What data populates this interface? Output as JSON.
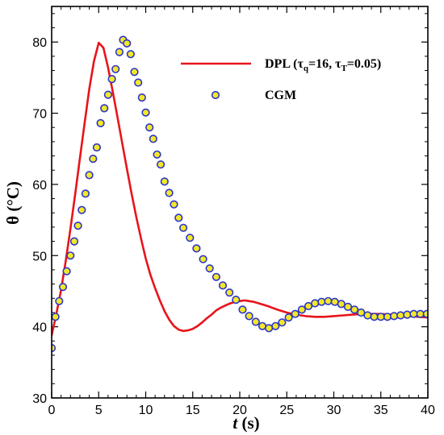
{
  "chart_data": {
    "type": "line",
    "xlabel": {
      "var": "t",
      "unit": " (s)"
    },
    "ylabel": "θ (°C)",
    "xlim": [
      0,
      40
    ],
    "ylim": [
      30,
      85
    ],
    "x_ticks": [
      0,
      5,
      10,
      15,
      20,
      25,
      30,
      35,
      40
    ],
    "y_ticks": [
      30,
      40,
      50,
      60,
      70,
      80
    ],
    "grid": false,
    "legend_position": "top-right",
    "series": [
      {
        "name": "DPL (τq=16, τT=0.05)",
        "legend_parts": {
          "pre": "DPL (τ",
          "sub1": "q",
          "mid": "=16, τ",
          "sub2": "T",
          "post": "=0.05)"
        },
        "style": "line",
        "color": "#e8141b",
        "x": [
          0,
          0.5,
          1,
          1.5,
          2,
          2.5,
          3,
          3.5,
          4,
          4.5,
          5,
          5.5,
          6,
          6.5,
          7,
          7.5,
          8,
          8.5,
          9,
          9.5,
          10,
          10.5,
          11,
          11.5,
          12,
          12.5,
          13,
          13.5,
          14,
          14.5,
          15,
          15.5,
          16,
          16.5,
          17,
          17.5,
          18,
          18.5,
          19,
          19.5,
          20,
          20.5,
          21,
          21.5,
          22,
          22.5,
          23,
          24,
          25,
          26,
          27,
          28,
          29,
          30,
          31,
          32,
          33,
          34,
          35,
          36,
          37,
          38,
          39,
          40
        ],
        "y": [
          38.8,
          41.8,
          45.2,
          49.3,
          53.8,
          58.6,
          63.6,
          68.6,
          73.4,
          77.3,
          79.9,
          79.2,
          76.4,
          73.0,
          69.4,
          65.8,
          62.2,
          58.7,
          55.4,
          52.4,
          49.6,
          47.3,
          45.4,
          43.7,
          42.2,
          41.0,
          40.1,
          39.6,
          39.4,
          39.5,
          39.7,
          40.1,
          40.6,
          41.2,
          41.7,
          42.3,
          42.7,
          43.0,
          43.3,
          43.5,
          43.6,
          43.7,
          43.6,
          43.5,
          43.3,
          43.1,
          42.9,
          42.4,
          42.0,
          41.7,
          41.5,
          41.4,
          41.4,
          41.5,
          41.6,
          41.7,
          41.8,
          41.8,
          41.8,
          41.7,
          41.6,
          41.5,
          41.4,
          41.3
        ]
      },
      {
        "name": "CGM",
        "style": "markers",
        "marker_fill": "#f2e72a",
        "marker_stroke": "#2c36c9",
        "x": [
          0,
          0.4,
          0.8,
          1.2,
          1.6,
          2.0,
          2.4,
          2.8,
          3.2,
          3.6,
          4.0,
          4.4,
          4.8,
          5.2,
          5.6,
          6.0,
          6.4,
          6.8,
          7.2,
          7.6,
          8.0,
          8.4,
          8.8,
          9.2,
          9.6,
          10.0,
          10.4,
          10.8,
          11.2,
          11.6,
          12.0,
          12.5,
          13.0,
          13.5,
          14.0,
          14.7,
          15.4,
          16.1,
          16.8,
          17.5,
          18.2,
          18.9,
          19.6,
          20.3,
          21.0,
          21.7,
          22.4,
          23.1,
          23.8,
          24.5,
          25.2,
          25.9,
          26.6,
          27.3,
          28.0,
          28.7,
          29.4,
          30.1,
          30.8,
          31.5,
          32.2,
          32.9,
          33.6,
          34.3,
          35.0,
          35.7,
          36.4,
          37.1,
          37.8,
          38.5,
          39.2,
          39.9
        ],
        "y": [
          37.0,
          41.4,
          43.6,
          45.6,
          47.8,
          50.0,
          52.0,
          54.2,
          56.4,
          58.7,
          61.3,
          63.6,
          65.2,
          68.6,
          70.7,
          72.6,
          74.8,
          76.2,
          78.6,
          80.3,
          79.8,
          78.3,
          75.8,
          74.3,
          72.2,
          70.1,
          68.0,
          66.4,
          64.2,
          62.8,
          60.4,
          58.8,
          57.2,
          55.3,
          53.9,
          52.5,
          51.0,
          49.5,
          48.2,
          47.0,
          45.8,
          44.8,
          43.8,
          42.4,
          41.5,
          40.7,
          40.1,
          39.8,
          40.1,
          40.6,
          41.3,
          41.8,
          42.4,
          42.9,
          43.3,
          43.5,
          43.6,
          43.5,
          43.2,
          42.8,
          42.4,
          42.0,
          41.6,
          41.4,
          41.4,
          41.4,
          41.5,
          41.6,
          41.7,
          41.8,
          41.8,
          41.8
        ]
      }
    ]
  }
}
